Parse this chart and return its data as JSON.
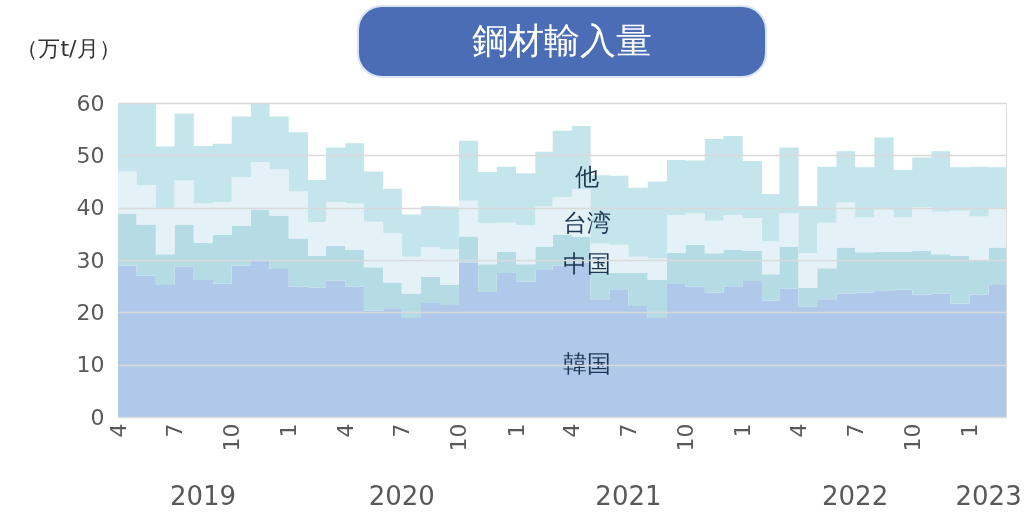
{
  "chart_data": {
    "type": "area",
    "stacked": true,
    "title": "鋼材輸入量",
    "ylabel": "（万t/月）",
    "x": [
      "2019-04",
      "2019-05",
      "2019-06",
      "2019-07",
      "2019-08",
      "2019-09",
      "2019-10",
      "2019-11",
      "2019-12",
      "2020-01",
      "2020-02",
      "2020-03",
      "2020-04",
      "2020-05",
      "2020-06",
      "2020-07",
      "2020-08",
      "2020-09",
      "2020-10",
      "2020-11",
      "2020-12",
      "2021-01",
      "2021-02",
      "2021-03",
      "2021-04",
      "2021-05",
      "2021-06",
      "2021-07",
      "2021-08",
      "2021-09",
      "2021-10",
      "2021-11",
      "2021-12",
      "2022-01",
      "2022-02",
      "2022-03",
      "2022-04",
      "2022-05",
      "2022-06",
      "2022-07",
      "2022-08",
      "2022-09",
      "2022-10",
      "2022-11",
      "2022-12",
      "2023-01",
      "2023-02",
      "2023-03"
    ],
    "series": [
      {
        "name": "韓国",
        "color": "#b0c9ea",
        "values": [
          28.9,
          27.0,
          25.2,
          28.7,
          26.2,
          25.5,
          28.9,
          29.9,
          28.3,
          24.9,
          24.7,
          26.1,
          24.9,
          20.3,
          20.8,
          18.9,
          21.8,
          21.4,
          29.5,
          23.9,
          27.5,
          25.9,
          28.1,
          28.9,
          29.5,
          22.5,
          24.4,
          21.2,
          18.9,
          25.4,
          24.9,
          23.8,
          25.0,
          26.0,
          22.2,
          24.5,
          21.1,
          22.5,
          23.6,
          23.8,
          24.1,
          24.3,
          23.4,
          23.6,
          21.7,
          23.4,
          25.2,
          26.0
        ]
      },
      {
        "name": "中国",
        "color": "#b5dce5",
        "values": [
          10.0,
          9.8,
          5.9,
          8.1,
          7.1,
          9.3,
          7.6,
          9.7,
          10.2,
          9.2,
          6.1,
          6.6,
          7.1,
          8.3,
          4.9,
          4.7,
          5.0,
          3.8,
          5.0,
          5.3,
          4.1,
          3.3,
          4.4,
          5.9,
          5.0,
          5.0,
          3.1,
          6.3,
          7.3,
          6.0,
          8.0,
          7.5,
          6.9,
          5.7,
          5.1,
          8.0,
          3.6,
          5.9,
          8.8,
          7.7,
          7.5,
          7.3,
          8.3,
          7.5,
          9.1,
          6.4,
          7.2,
          8.8
        ]
      },
      {
        "name": "台湾",
        "color": "#e4f2f7",
        "values": [
          8.0,
          7.5,
          8.8,
          8.4,
          7.5,
          6.3,
          9.3,
          9.1,
          8.8,
          9.0,
          6.4,
          8.4,
          8.8,
          8.7,
          9.4,
          7.0,
          5.7,
          6.8,
          6.8,
          7.8,
          5.5,
          7.5,
          7.7,
          7.2,
          9.0,
          5.6,
          5.4,
          3.1,
          4.1,
          7.2,
          6.0,
          6.2,
          6.7,
          6.3,
          6.3,
          6.4,
          6.6,
          8.7,
          8.6,
          6.6,
          8.0,
          6.5,
          8.4,
          8.1,
          8.6,
          8.5,
          7.3,
          7.2
        ]
      },
      {
        "name": "他",
        "color": "#c5e5ec",
        "values": [
          12.9,
          15.7,
          11.8,
          12.8,
          11.0,
          11.1,
          11.6,
          11.3,
          10.1,
          11.3,
          8.1,
          10.4,
          11.5,
          9.6,
          8.5,
          8.1,
          7.8,
          8.2,
          11.5,
          9.8,
          10.7,
          9.9,
          10.5,
          12.7,
          12.1,
          13.1,
          13.2,
          13.2,
          14.7,
          10.5,
          10.1,
          15.6,
          15.1,
          10.9,
          9.0,
          12.6,
          9.0,
          10.7,
          9.8,
          9.6,
          13.8,
          9.1,
          9.5,
          11.6,
          8.3,
          9.5,
          8.0,
          10.0
        ]
      }
    ],
    "xlim": [
      "2019-04",
      "2023-03"
    ],
    "xticks": [
      {
        "value": "2019-04",
        "label": "4"
      },
      {
        "value": "2019-07",
        "label": "7"
      },
      {
        "value": "2019-10",
        "label": "10"
      },
      {
        "value": "2020-01",
        "label": "1"
      },
      {
        "value": "2020-04",
        "label": "4"
      },
      {
        "value": "2020-07",
        "label": "7"
      },
      {
        "value": "2020-10",
        "label": "10"
      },
      {
        "value": "2021-01",
        "label": "1"
      },
      {
        "value": "2021-04",
        "label": "4"
      },
      {
        "value": "2021-07",
        "label": "7"
      },
      {
        "value": "2021-10",
        "label": "10"
      },
      {
        "value": "2022-01",
        "label": "1"
      },
      {
        "value": "2022-04",
        "label": "4"
      },
      {
        "value": "2022-07",
        "label": "7"
      },
      {
        "value": "2022-10",
        "label": "10"
      },
      {
        "value": "2023-01",
        "label": "1"
      }
    ],
    "x2lim": [
      "2019-04",
      "2023-03"
    ],
    "x2ticks": [
      {
        "value": "2019-08-16",
        "label": "2019"
      },
      {
        "value": "2020-07-01",
        "label": "2020"
      },
      {
        "value": "2021-07-01",
        "label": "2021"
      },
      {
        "value": "2022-07-01",
        "label": "2022"
      },
      {
        "value": "2023-02-01",
        "label": "2023"
      }
    ],
    "ylim": [
      0,
      60
    ],
    "yticks": [
      0,
      10,
      20,
      30,
      40,
      50,
      60
    ],
    "grid": "y",
    "legend": false
  }
}
